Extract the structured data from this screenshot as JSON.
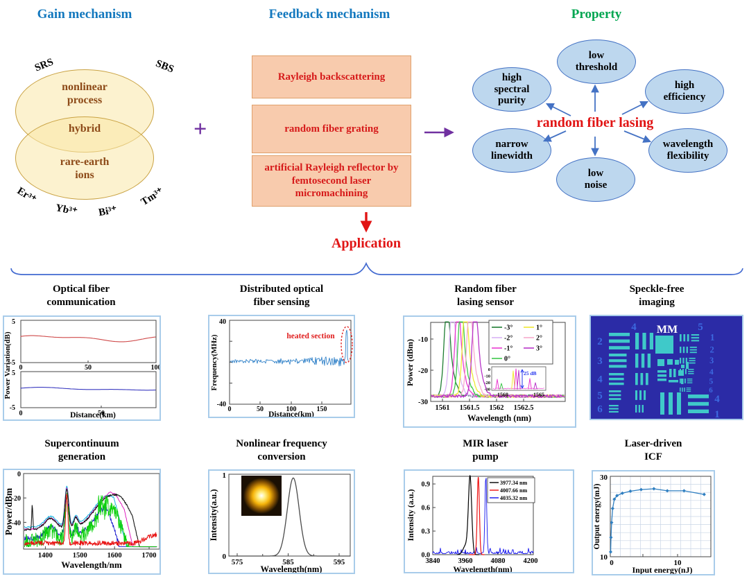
{
  "colors": {
    "heading_blue": "#1378be",
    "heading_green": "#00A651",
    "red": "#e11414",
    "purple": "#7030A0",
    "arrow_blue": "#4472C4",
    "panel_border": "#A8CCEA",
    "feedback_box_fill": "#F8CBAD",
    "property_ellipse_fill": "#BDD7EE",
    "venn_fill": "#F9E7A7"
  },
  "top": {
    "gain": {
      "title": "Gain mechanism",
      "outer_labels": [
        "SRS",
        "SBS"
      ],
      "venn": {
        "top": "nonlinear\nprocess",
        "overlap": "hybrid",
        "bottom": "rare-earth\nions"
      },
      "ion_labels": [
        "Er³⁺",
        "Yb³⁺",
        "Bi³⁺",
        "Tm³⁺"
      ]
    },
    "plus_sign": "+",
    "feedback": {
      "title": "Feedback mechanism",
      "boxes": [
        "Rayleigh backscattering",
        "random fiber grating",
        "artificial Rayleigh reflector by femtosecond laser micromachining"
      ]
    },
    "property": {
      "title": "Property",
      "center_label": "random fiber lasing",
      "ellipses": [
        "low\nthreshold",
        "high\nspectral\npurity",
        "high\nefficiency",
        "narrow\nlinewidth",
        "wavelength\nflexibility",
        "low\nnoise"
      ]
    }
  },
  "application": {
    "label": "Application"
  },
  "panels": [
    {
      "id": "optical-fiber-communication",
      "title": "Optical fiber\ncommunication",
      "chart_data": {
        "type": "line",
        "xlabel": "Distance(km)",
        "ylabel": "Power Variation(dB)",
        "subplots": [
          {
            "color": "#cf4a4a",
            "ylim": [
              -5,
              5
            ],
            "yticks": [
              5,
              -5
            ],
            "xticks": [
              0,
              50,
              100
            ]
          },
          {
            "color": "#3a3ac0",
            "ylim": [
              -5,
              5
            ],
            "yticks": [
              5,
              -5
            ],
            "xticks": [
              0,
              50
            ]
          }
        ]
      }
    },
    {
      "id": "distributed-optical-fiber-sensing",
      "title": "Distributed optical\nfiber sensing",
      "chart_data": {
        "type": "line",
        "xlabel": "Distance(km)",
        "ylabel": "Frequency(MHz)",
        "ylim": [
          -40,
          40
        ],
        "yticks": [
          40,
          -40
        ],
        "xticks": [
          0,
          50,
          100,
          150
        ],
        "annotation": "heated section",
        "series_color": "#1f77c4",
        "spike": {
          "x_km": 190,
          "peak_mhz": 32
        }
      }
    },
    {
      "id": "random-fiber-lasing-sensor",
      "title": "Random fiber\nlasing sensor",
      "chart_data": {
        "type": "line",
        "xlabel": "Wavelength (nm)",
        "ylabel": "Power (dBm)",
        "ylim": [
          -30,
          0
        ],
        "yticks": [
          -10,
          -20,
          -30
        ],
        "xticks": [
          1561,
          1561.5,
          1562,
          1562.5
        ],
        "noise_floor_dbm": -28,
        "peak_dbm": -4.5,
        "series": [
          {
            "name": "-3°",
            "color": "#1e7d32",
            "center_nm": 1561.08
          },
          {
            "name": "-2°",
            "color": "#d9b3f5",
            "center_nm": 1561.18
          },
          {
            "name": "-1°",
            "color": "#ea3bd0",
            "center_nm": 1561.28
          },
          {
            "name": "0°",
            "color": "#3dc84b",
            "center_nm": 1561.34
          },
          {
            "name": "1°",
            "color": "#f0e832",
            "center_nm": 1561.42
          },
          {
            "name": "2°",
            "color": "#f7aacc",
            "center_nm": 1561.5
          },
          {
            "name": "3°",
            "color": "#b835c8",
            "center_nm": 1561.6
          }
        ],
        "inset": {
          "xticks": [
            1560,
            1565
          ],
          "yticks": [
            0,
            -10,
            -20,
            -30
          ],
          "arrow_label": "25 dB",
          "arrow_color": "#2233ee"
        }
      }
    },
    {
      "id": "speckle-free-imaging",
      "title": "Speckle-free\nimaging",
      "chart_data": {
        "type": "image",
        "description": "resolution test chart",
        "label": "MM",
        "label_color": "#ffffff",
        "numbers_top": [
          "4",
          "5"
        ],
        "numbers_left": [
          "2",
          "3",
          "4",
          "5",
          "6"
        ],
        "numbers_right": [
          "1",
          "2",
          "3",
          "4",
          "5",
          "6"
        ],
        "numbers_bottom_right": [
          "4",
          "1"
        ],
        "bg": "#2b2ba6",
        "bars": "#3fc9c9",
        "number_color": "#3c6ae0"
      }
    },
    {
      "id": "supercontinuum-generation",
      "title": "Supercontinuum\ngeneration",
      "chart_data": {
        "type": "line",
        "xlabel": "Wavelength/nm",
        "ylabel": "Power/dBm",
        "yticks": [
          0,
          -20,
          -40
        ],
        "xticks": [
          1400,
          1500,
          1600,
          1700
        ],
        "xlim": [
          1337,
          1730
        ],
        "main_peak_nm": 1462,
        "series": [
          {
            "name": "cyan",
            "color": "#15b4e0"
          },
          {
            "name": "magenta",
            "color": "#e020c0"
          },
          {
            "name": "black",
            "color": "#151515"
          },
          {
            "name": "blue",
            "color": "#1515cc"
          },
          {
            "name": "green",
            "color": "#0bd00b"
          },
          {
            "name": "red",
            "color": "#e81010"
          }
        ]
      }
    },
    {
      "id": "nonlinear-frequency-conversion",
      "title": "Nonlinear frequency\nconversion",
      "chart_data": {
        "type": "line",
        "xlabel": "Wavelength(nm)",
        "ylabel": "Intensity(a.u.)",
        "yticks": [
          0,
          1
        ],
        "xticks": [
          575,
          585,
          595
        ],
        "peak": {
          "center": 586,
          "height": 0.98
        },
        "line_color": "#4a4a4a",
        "inset": "laser beam spot"
      }
    },
    {
      "id": "mir-laser-pump",
      "title": "MIR laser\npump",
      "chart_data": {
        "type": "line",
        "xlabel": "Wavelength(nm)",
        "ylabel": "Intensity (a.u.)",
        "yticks": [
          0,
          0.3,
          0.6,
          0.9
        ],
        "xticks": [
          3840,
          3960,
          4080,
          4200
        ],
        "series": [
          {
            "name": "3977.34 nm",
            "color": "#000000",
            "center_nm": 3977.34
          },
          {
            "name": "4007.66 nm",
            "color": "#ee1111",
            "center_nm": 4007.66
          },
          {
            "name": "4035.32 nm",
            "color": "#1111ee",
            "center_nm": 4035.32
          }
        ]
      }
    },
    {
      "id": "laser-driven-icf",
      "title": "Laser-driven\nICF",
      "chart_data": {
        "type": "scatter-line",
        "xlabel": "Input energy(nJ)",
        "ylabel": "Output energy(mJ)",
        "yticks": [
          10,
          30
        ],
        "xticks": [
          0,
          10
        ],
        "ylim": [
          10,
          30
        ],
        "grid": true,
        "color": "#2f7fc1",
        "points": [
          [
            0.05,
            11.2
          ],
          [
            0.1,
            14.8
          ],
          [
            0.2,
            18.5
          ],
          [
            0.35,
            22
          ],
          [
            0.6,
            24.3
          ],
          [
            1,
            25.2
          ],
          [
            1.8,
            25.8
          ],
          [
            3,
            26.3
          ],
          [
            4.6,
            26.7
          ],
          [
            6.5,
            26.9
          ],
          [
            8.5,
            26.4
          ],
          [
            11,
            26.4
          ],
          [
            14,
            25.5
          ]
        ]
      }
    }
  ]
}
